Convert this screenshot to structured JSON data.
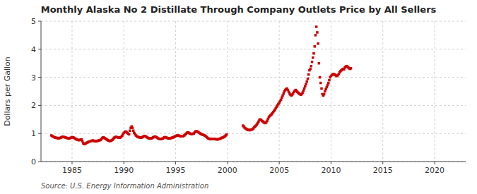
{
  "chart_data": {
    "type": "scatter",
    "title": "Monthly Alaska No 2 Distillate Through Company Outlets Price by All Sellers",
    "y_label": "Dollars per Gallon",
    "annotations": [
      "Source: U.S. Energy Information Administration"
    ],
    "color": "#CC0000",
    "marker": "square",
    "grid": true,
    "xlim": [
      1982,
      2023
    ],
    "ylim": [
      0,
      5
    ],
    "xticks": [
      1985,
      1990,
      1995,
      2000,
      2005,
      2010,
      2015,
      2020
    ],
    "yticks": [
      0,
      1,
      2,
      3,
      4,
      5
    ],
    "x": [
      1983.0,
      1983.083,
      1983.167,
      1983.25,
      1983.333,
      1983.417,
      1983.5,
      1983.583,
      1983.667,
      1983.75,
      1983.833,
      1983.917,
      1984.0,
      1984.083,
      1984.167,
      1984.25,
      1984.333,
      1984.417,
      1984.5,
      1984.583,
      1984.667,
      1984.75,
      1984.833,
      1984.917,
      1985.0,
      1985.083,
      1985.167,
      1985.25,
      1985.333,
      1985.417,
      1985.5,
      1985.583,
      1985.667,
      1985.75,
      1985.833,
      1985.917,
      1986.0,
      1986.083,
      1986.167,
      1986.25,
      1986.333,
      1986.417,
      1986.5,
      1986.583,
      1986.667,
      1986.75,
      1986.833,
      1986.917,
      1987.0,
      1987.083,
      1987.167,
      1987.25,
      1987.333,
      1987.417,
      1987.5,
      1987.583,
      1987.667,
      1987.75,
      1987.833,
      1987.917,
      1988.0,
      1988.083,
      1988.167,
      1988.25,
      1988.333,
      1988.417,
      1988.5,
      1988.583,
      1988.667,
      1988.75,
      1988.833,
      1988.917,
      1989.0,
      1989.083,
      1989.167,
      1989.25,
      1989.333,
      1989.417,
      1989.5,
      1989.583,
      1989.667,
      1989.75,
      1989.833,
      1989.917,
      1990.0,
      1990.083,
      1990.167,
      1990.25,
      1990.333,
      1990.417,
      1990.5,
      1990.583,
      1990.667,
      1990.75,
      1990.833,
      1990.917,
      1991.0,
      1991.083,
      1991.167,
      1991.25,
      1991.333,
      1991.417,
      1991.5,
      1991.583,
      1991.667,
      1991.75,
      1991.833,
      1991.917,
      1992.0,
      1992.083,
      1992.167,
      1992.25,
      1992.333,
      1992.417,
      1992.5,
      1992.583,
      1992.667,
      1992.75,
      1992.833,
      1992.917,
      1993.0,
      1993.083,
      1993.167,
      1993.25,
      1993.333,
      1993.417,
      1993.5,
      1993.583,
      1993.667,
      1993.75,
      1993.833,
      1993.917,
      1994.0,
      1994.083,
      1994.167,
      1994.25,
      1994.333,
      1994.417,
      1994.5,
      1994.583,
      1994.667,
      1994.75,
      1994.833,
      1994.917,
      1995.0,
      1995.083,
      1995.167,
      1995.25,
      1995.333,
      1995.417,
      1995.5,
      1995.583,
      1995.667,
      1995.75,
      1995.833,
      1995.917,
      1996.0,
      1996.083,
      1996.167,
      1996.25,
      1996.333,
      1996.417,
      1996.5,
      1996.583,
      1996.667,
      1996.75,
      1996.833,
      1996.917,
      1997.0,
      1997.083,
      1997.167,
      1997.25,
      1997.333,
      1997.417,
      1997.5,
      1997.583,
      1997.667,
      1997.75,
      1997.833,
      1997.917,
      1998.0,
      1998.083,
      1998.167,
      1998.25,
      1998.333,
      1998.417,
      1998.5,
      1998.583,
      1998.667,
      1998.75,
      1998.833,
      1998.917,
      1999.0,
      1999.083,
      1999.167,
      1999.25,
      1999.333,
      1999.417,
      1999.5,
      1999.583,
      1999.667,
      1999.75,
      1999.833,
      1999.917,
      2001.5,
      2001.583,
      2001.667,
      2001.75,
      2001.833,
      2001.917,
      2002.0,
      2002.083,
      2002.167,
      2002.25,
      2002.333,
      2002.417,
      2002.5,
      2002.583,
      2002.667,
      2002.75,
      2002.833,
      2002.917,
      2003.0,
      2003.083,
      2003.167,
      2003.25,
      2003.333,
      2003.417,
      2003.5,
      2003.583,
      2003.667,
      2003.75,
      2003.833,
      2003.917,
      2004.0,
      2004.083,
      2004.167,
      2004.25,
      2004.333,
      2004.417,
      2004.5,
      2004.583,
      2004.667,
      2004.75,
      2004.833,
      2004.917,
      2005.0,
      2005.083,
      2005.167,
      2005.25,
      2005.333,
      2005.417,
      2005.5,
      2005.583,
      2005.667,
      2005.75,
      2005.833,
      2005.917,
      2006.0,
      2006.083,
      2006.167,
      2006.25,
      2006.333,
      2006.417,
      2006.5,
      2006.583,
      2006.667,
      2006.75,
      2006.833,
      2006.917,
      2007.0,
      2007.083,
      2007.167,
      2007.25,
      2007.333,
      2007.417,
      2007.5,
      2007.583,
      2007.667,
      2007.75,
      2007.833,
      2007.917,
      2008.0,
      2008.083,
      2008.167,
      2008.25,
      2008.333,
      2008.417,
      2008.5,
      2008.583,
      2008.667,
      2008.75,
      2008.833,
      2008.917,
      2009.0,
      2009.083,
      2009.167,
      2009.25,
      2009.333,
      2009.417,
      2009.5,
      2009.583,
      2009.667,
      2009.75,
      2009.833,
      2009.917,
      2010.0,
      2010.083,
      2010.167,
      2010.25,
      2010.333,
      2010.417,
      2010.5,
      2010.583,
      2010.667,
      2010.75,
      2010.833,
      2010.917,
      2011.0,
      2011.083,
      2011.167,
      2011.25,
      2011.333,
      2011.417,
      2011.5,
      2011.583,
      2011.667,
      2011.75,
      2011.833,
      2011.917
    ],
    "values": [
      0.93,
      0.91,
      0.89,
      0.87,
      0.86,
      0.85,
      0.84,
      0.84,
      0.83,
      0.83,
      0.84,
      0.85,
      0.87,
      0.88,
      0.88,
      0.87,
      0.86,
      0.85,
      0.84,
      0.83,
      0.82,
      0.83,
      0.84,
      0.85,
      0.87,
      0.86,
      0.85,
      0.83,
      0.81,
      0.79,
      0.78,
      0.77,
      0.76,
      0.77,
      0.78,
      0.79,
      0.72,
      0.65,
      0.62,
      0.63,
      0.65,
      0.67,
      0.68,
      0.7,
      0.71,
      0.72,
      0.73,
      0.74,
      0.75,
      0.74,
      0.73,
      0.72,
      0.72,
      0.73,
      0.74,
      0.75,
      0.76,
      0.77,
      0.8,
      0.84,
      0.86,
      0.85,
      0.83,
      0.81,
      0.79,
      0.77,
      0.75,
      0.74,
      0.73,
      0.74,
      0.76,
      0.78,
      0.82,
      0.85,
      0.87,
      0.88,
      0.87,
      0.86,
      0.85,
      0.85,
      0.86,
      0.88,
      0.92,
      0.98,
      1.02,
      1.05,
      1.07,
      1.05,
      1.02,
      0.99,
      0.97,
      1.1,
      1.2,
      1.25,
      1.2,
      1.1,
      1.02,
      0.97,
      0.93,
      0.9,
      0.88,
      0.87,
      0.86,
      0.85,
      0.85,
      0.86,
      0.88,
      0.9,
      0.91,
      0.9,
      0.88,
      0.86,
      0.84,
      0.83,
      0.82,
      0.82,
      0.83,
      0.84,
      0.86,
      0.88,
      0.89,
      0.88,
      0.86,
      0.84,
      0.82,
      0.81,
      0.8,
      0.8,
      0.81,
      0.82,
      0.84,
      0.86,
      0.87,
      0.86,
      0.84,
      0.83,
      0.82,
      0.82,
      0.83,
      0.84,
      0.85,
      0.86,
      0.87,
      0.89,
      0.91,
      0.92,
      0.93,
      0.93,
      0.92,
      0.91,
      0.9,
      0.9,
      0.9,
      0.91,
      0.93,
      0.96,
      0.99,
      1.02,
      1.04,
      1.03,
      1.01,
      0.99,
      0.98,
      0.98,
      0.99,
      1.0,
      1.04,
      1.07,
      1.08,
      1.07,
      1.05,
      1.03,
      1.01,
      0.99,
      0.97,
      0.96,
      0.95,
      0.94,
      0.92,
      0.9,
      0.87,
      0.84,
      0.82,
      0.81,
      0.8,
      0.8,
      0.8,
      0.8,
      0.8,
      0.8,
      0.8,
      0.79,
      0.79,
      0.79,
      0.8,
      0.81,
      0.82,
      0.84,
      0.85,
      0.86,
      0.88,
      0.9,
      0.93,
      0.96,
      1.28,
      1.25,
      1.2,
      1.18,
      1.16,
      1.14,
      1.13,
      1.12,
      1.12,
      1.13,
      1.14,
      1.15,
      1.18,
      1.22,
      1.25,
      1.28,
      1.32,
      1.36,
      1.42,
      1.48,
      1.5,
      1.48,
      1.45,
      1.43,
      1.4,
      1.38,
      1.37,
      1.4,
      1.45,
      1.52,
      1.58,
      1.62,
      1.65,
      1.68,
      1.72,
      1.76,
      1.8,
      1.85,
      1.9,
      1.95,
      2.0,
      2.05,
      2.1,
      2.15,
      2.2,
      2.28,
      2.35,
      2.42,
      2.5,
      2.55,
      2.58,
      2.6,
      2.55,
      2.48,
      2.42,
      2.38,
      2.35,
      2.38,
      2.42,
      2.48,
      2.52,
      2.55,
      2.52,
      2.48,
      2.45,
      2.42,
      2.4,
      2.38,
      2.4,
      2.45,
      2.52,
      2.6,
      2.68,
      2.76,
      2.85,
      2.95,
      3.1,
      3.25,
      3.3,
      3.4,
      3.55,
      3.7,
      3.85,
      4.1,
      4.5,
      4.8,
      4.6,
      4.2,
      3.5,
      3.0,
      2.8,
      2.6,
      2.4,
      2.35,
      2.4,
      2.5,
      2.58,
      2.65,
      2.72,
      2.8,
      2.9,
      3.0,
      3.05,
      3.08,
      3.1,
      3.12,
      3.1,
      3.08,
      3.05,
      3.05,
      3.08,
      3.12,
      3.18,
      3.22,
      3.25,
      3.28,
      3.3,
      3.28,
      3.35,
      3.38,
      3.4,
      3.38,
      3.35,
      3.32,
      3.3,
      3.32
    ]
  }
}
